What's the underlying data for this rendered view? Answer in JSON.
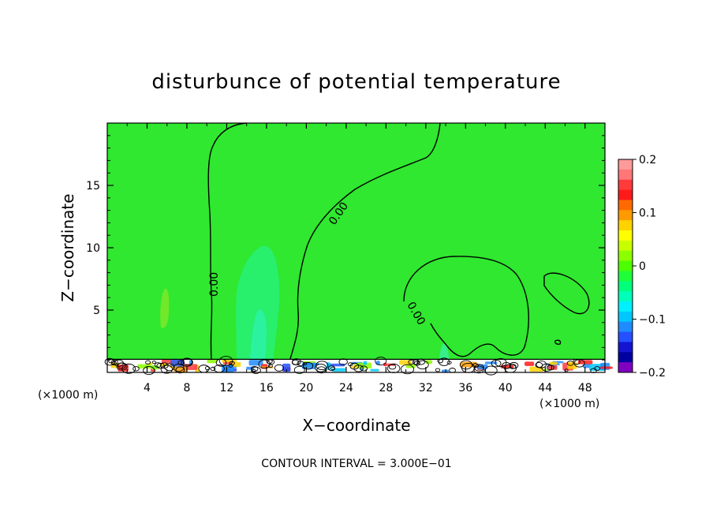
{
  "chart_data": {
    "type": "heatmap",
    "title": "disturbunce of potential temperature",
    "xlabel": "X−coordinate",
    "ylabel": "Z−coordinate",
    "x_unit_left": "(×1000 m)",
    "x_unit_right": "(×1000 m)",
    "xlim": [
      0,
      50
    ],
    "ylim": [
      0,
      20
    ],
    "x_ticks": [
      4,
      8,
      12,
      16,
      20,
      24,
      28,
      32,
      36,
      40,
      44,
      48
    ],
    "x_tick_labels": [
      "4",
      "8",
      "12",
      "16",
      "20",
      "24",
      "28",
      "32",
      "36",
      "40",
      "44",
      "48"
    ],
    "y_ticks": [
      5,
      10,
      15
    ],
    "y_tick_labels": [
      "5",
      "10",
      "15"
    ],
    "contour_interval_text": "CONTOUR INTERVAL = 3.000E−01",
    "contour_labels": [
      "0.00",
      "0.00",
      "0.00",
      "0.00"
    ],
    "colorbar": {
      "ticks": [
        0.2,
        0.1,
        0,
        -0.1,
        -0.2
      ],
      "tick_labels": [
        "0.2",
        "0.1",
        "0",
        "−0.1",
        "−0.2"
      ],
      "range": [
        -0.2,
        0.2
      ],
      "colors_top_to_bottom": [
        "#ff9a9a",
        "#ff7777",
        "#ff3a3a",
        "#ff1a1a",
        "#ff6a00",
        "#ff9a00",
        "#ffd200",
        "#ffff00",
        "#c8ff00",
        "#8cff00",
        "#4cff00",
        "#1eff3a",
        "#00ff7a",
        "#00ffb8",
        "#00f0ff",
        "#00c8ff",
        "#1e8cff",
        "#2450ff",
        "#1414d2",
        "#0000a0",
        "#8000c0"
      ]
    },
    "background_value": 0,
    "background_color": "#2fe82f"
  }
}
